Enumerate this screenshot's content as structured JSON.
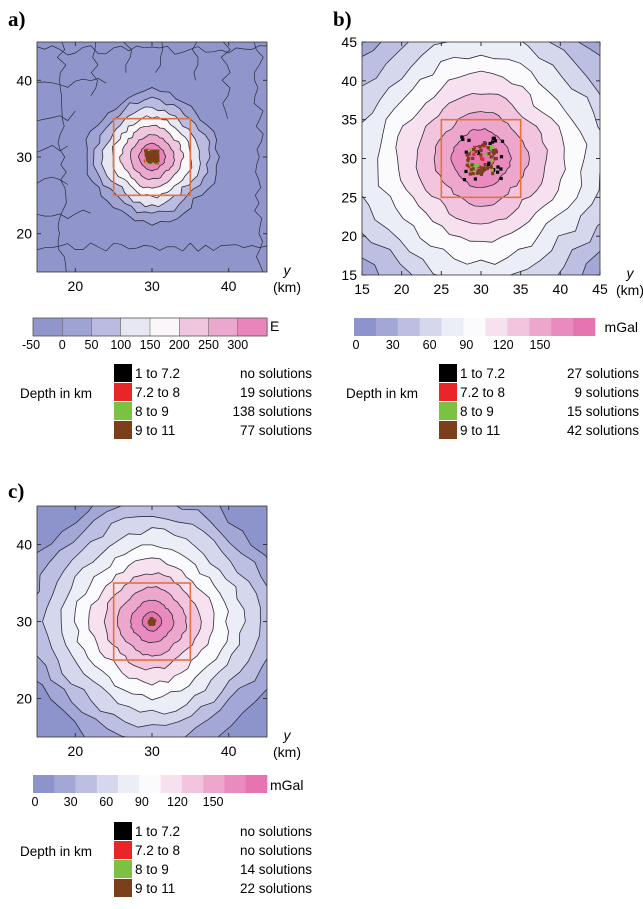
{
  "chart_data": [
    {
      "panel_label": "a)",
      "type": "heatmap",
      "x_ticks": [
        "20",
        "30",
        "40"
      ],
      "y_ticks": [
        "20",
        "30",
        "40"
      ],
      "xlim": [
        15,
        45
      ],
      "ylim": [
        15,
        45
      ],
      "axis_label": "y",
      "axis_unit": "(km)",
      "colorbar": {
        "unit": "E",
        "tick_labels": [
          "-50",
          "0",
          "50",
          "100",
          "150",
          "200",
          "250",
          "300"
        ],
        "colors": [
          "#9096cc",
          "#9ea3d3",
          "#b9bce0",
          "#e6e7f3",
          "#fbf6fa",
          "#f0c6de",
          "#eba8cc",
          "#e985ba"
        ]
      },
      "body_square": {
        "x": [
          25,
          35
        ],
        "y": [
          25,
          35
        ],
        "color": "#e8703a"
      },
      "peak": {
        "x": 30,
        "y": 30
      },
      "legend_title": "Depth in km",
      "legend": [
        {
          "range": "1 to 7.2",
          "color": "#000000",
          "solutions": "no solutions"
        },
        {
          "range": "7.2 to 8",
          "color": "#e8262a",
          "solutions": "19 solutions"
        },
        {
          "range": "8 to 9",
          "color": "#7cc242",
          "solutions": "138 solutions"
        },
        {
          "range": "9 to 11",
          "color": "#7b3f1b",
          "solutions": "77 solutions"
        }
      ]
    },
    {
      "panel_label": "b)",
      "type": "heatmap",
      "x_ticks": [
        "15",
        "20",
        "25",
        "30",
        "35",
        "40",
        "45"
      ],
      "y_ticks": [
        "15",
        "20",
        "25",
        "30",
        "35",
        "40",
        "45"
      ],
      "xlim": [
        15,
        45
      ],
      "ylim": [
        15,
        45
      ],
      "axis_label": "y",
      "axis_unit": "(km)",
      "colorbar": {
        "unit": "mGal",
        "tick_labels": [
          "0",
          "30",
          "60",
          "90",
          "120",
          "150"
        ],
        "colors": [
          "#8d93cb",
          "#a3a7d5",
          "#bcbfe2",
          "#d5d7ec",
          "#eceef7",
          "#fbfbfd",
          "#f8e1ee",
          "#f2c4de",
          "#eda7cd",
          "#e98bbe",
          "#e574b1"
        ]
      },
      "body_square": {
        "x": [
          25,
          35
        ],
        "y": [
          25,
          35
        ],
        "color": "#e8703a"
      },
      "peak": {
        "x": 30,
        "y": 30
      },
      "legend_title": "Depth in km",
      "legend": [
        {
          "range": "1 to 7.2",
          "color": "#000000",
          "solutions": "27 solutions"
        },
        {
          "range": "7.2 to 8",
          "color": "#e8262a",
          "solutions": "9 solutions"
        },
        {
          "range": "8 to 9",
          "color": "#7cc242",
          "solutions": "15 solutions"
        },
        {
          "range": "9 to 11",
          "color": "#7b3f1b",
          "solutions": "42 solutions"
        }
      ]
    },
    {
      "panel_label": "c)",
      "type": "heatmap",
      "x_ticks": [
        "20",
        "30",
        "40"
      ],
      "y_ticks": [
        "20",
        "30",
        "40"
      ],
      "xlim": [
        15,
        45
      ],
      "ylim": [
        15,
        45
      ],
      "axis_label": "y",
      "axis_unit": "(km)",
      "colorbar": {
        "unit": "mGal",
        "tick_labels": [
          "0",
          "30",
          "60",
          "90",
          "120",
          "150"
        ],
        "colors": [
          "#8d93cb",
          "#a3a7d5",
          "#bcbfe2",
          "#d5d7ec",
          "#eceef7",
          "#fbfbfd",
          "#f8e1ee",
          "#f2c4de",
          "#eda7cd",
          "#e98bbe",
          "#e574b1"
        ]
      },
      "body_square": {
        "x": [
          25,
          35
        ],
        "y": [
          25,
          35
        ],
        "color": "#e8703a"
      },
      "peak": {
        "x": 30,
        "y": 30
      },
      "legend_title": "Depth in km",
      "legend": [
        {
          "range": "1 to 7.2",
          "color": "#000000",
          "solutions": "no solutions"
        },
        {
          "range": "7.2 to 8",
          "color": "#e8262a",
          "solutions": "no solutions"
        },
        {
          "range": "8 to 9",
          "color": "#7cc242",
          "solutions": "14 solutions"
        },
        {
          "range": "9 to 11",
          "color": "#7b3f1b",
          "solutions": "22 solutions"
        }
      ]
    }
  ]
}
